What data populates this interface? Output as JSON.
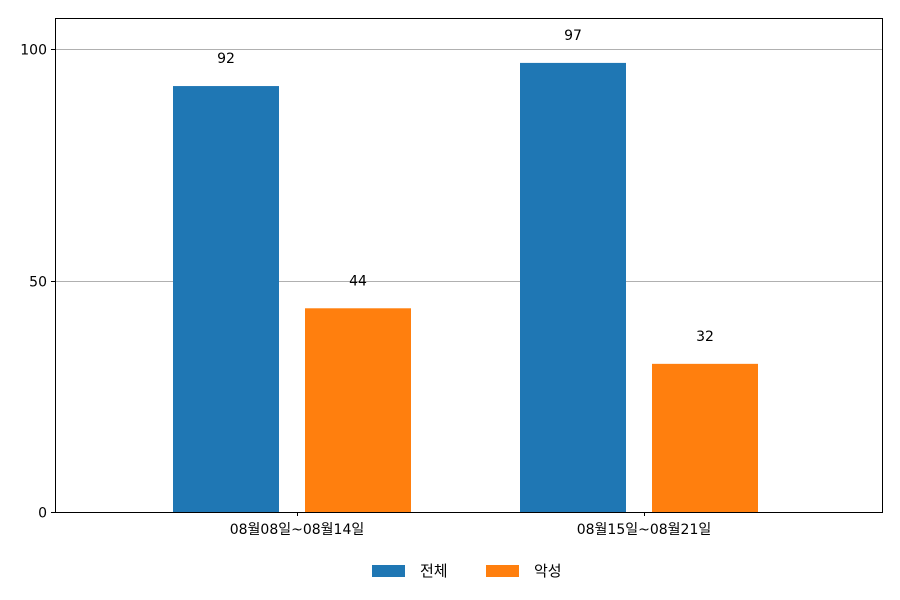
{
  "chart_data": {
    "type": "bar",
    "categories": [
      "08월08일~08월14일",
      "08월15일~08월21일"
    ],
    "series": [
      {
        "name": "전체",
        "values": [
          92,
          97
        ],
        "color": "#1f77b4"
      },
      {
        "name": "악성",
        "values": [
          44,
          32
        ],
        "color": "#ff7f0e"
      }
    ],
    "ylim": [
      0,
      106.7
    ],
    "yticks": [
      0,
      50,
      100
    ],
    "grid": "horizontal",
    "legend": "bottom-center",
    "title": "",
    "xlabel": "",
    "ylabel": ""
  }
}
